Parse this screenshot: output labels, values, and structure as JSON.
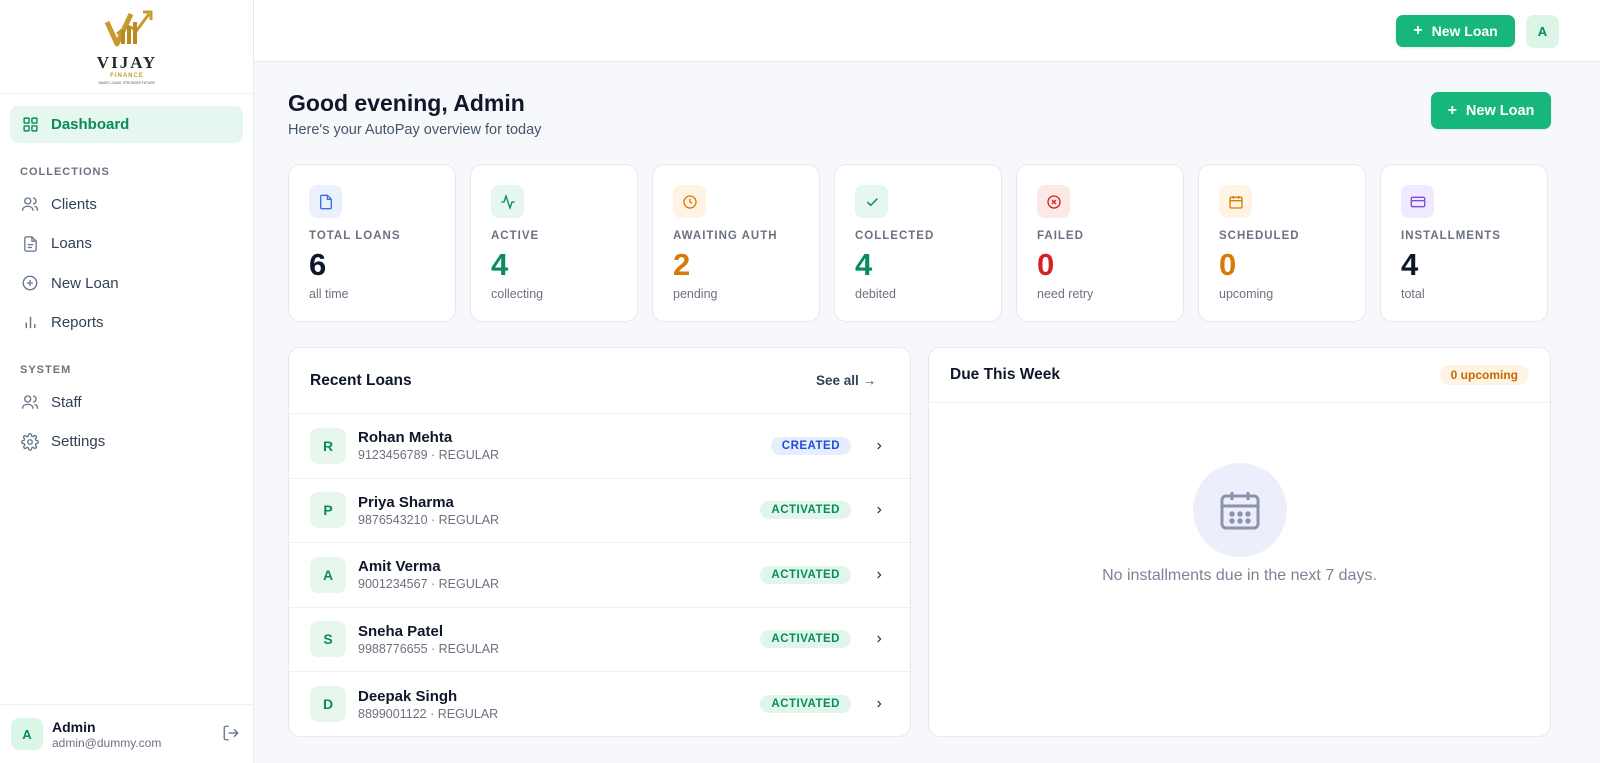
{
  "brand": {
    "name": "VIJAY",
    "sub": "FINANCE",
    "tagline": "SMART LOANS. STRONGER FUTURE."
  },
  "sidebar": {
    "dashboard": "Dashboard",
    "section_collections": "COLLECTIONS",
    "clients": "Clients",
    "loans": "Loans",
    "new_loan": "New Loan",
    "reports": "Reports",
    "section_system": "SYSTEM",
    "staff": "Staff",
    "settings": "Settings"
  },
  "user": {
    "initial": "A",
    "name": "Admin",
    "email": "admin@dummy.com"
  },
  "topbar": {
    "new_loan_label": "New Loan",
    "avatar_initial": "A"
  },
  "page": {
    "greeting": "Good evening, Admin",
    "subtitle": "Here's your AutoPay overview for today",
    "new_loan_label": "New Loan"
  },
  "stats": [
    {
      "label": "TOTAL LOANS",
      "value": "6",
      "note": "all time",
      "color": "#0f172a",
      "icon": "file-icon",
      "icon_bg": "#eaf0fd",
      "icon_color": "#3b6fe0"
    },
    {
      "label": "ACTIVE",
      "value": "4",
      "note": "collecting",
      "color": "#0a8b5c",
      "icon": "activity-icon",
      "icon_bg": "#e5f7ef",
      "icon_color": "#0a8b5c"
    },
    {
      "label": "AWAITING AUTH",
      "value": "2",
      "note": "pending",
      "color": "#d97a06",
      "icon": "clock-icon",
      "icon_bg": "#fff4e3",
      "icon_color": "#d97a06"
    },
    {
      "label": "COLLECTED",
      "value": "4",
      "note": "debited",
      "color": "#0a8b5c",
      "icon": "check-icon",
      "icon_bg": "#e5f7ef",
      "icon_color": "#0a8b5c"
    },
    {
      "label": "FAILED",
      "value": "0",
      "note": "need retry",
      "color": "#d92020",
      "icon": "x-circle-icon",
      "icon_bg": "#fde8e8",
      "icon_color": "#d92020"
    },
    {
      "label": "SCHEDULED",
      "value": "0",
      "note": "upcoming",
      "color": "#d97a06",
      "icon": "calendar-icon",
      "icon_bg": "#fff4e3",
      "icon_color": "#d97a06"
    },
    {
      "label": "INSTALLMENTS",
      "value": "4",
      "note": "total",
      "color": "#0f172a",
      "icon": "card-icon",
      "icon_bg": "#efeafd",
      "icon_color": "#7c4ddb"
    }
  ],
  "recent": {
    "title": "Recent Loans",
    "see_all": "See all →",
    "rows": [
      {
        "initial": "R",
        "name": "Rohan Mehta",
        "meta": "9123456789 · REGULAR",
        "status": "CREATED"
      },
      {
        "initial": "P",
        "name": "Priya Sharma",
        "meta": "9876543210 · REGULAR",
        "status": "ACTIVATED"
      },
      {
        "initial": "A",
        "name": "Amit Verma",
        "meta": "9001234567 · REGULAR",
        "status": "ACTIVATED"
      },
      {
        "initial": "S",
        "name": "Sneha Patel",
        "meta": "9988776655 · REGULAR",
        "status": "ACTIVATED"
      },
      {
        "initial": "D",
        "name": "Deepak Singh",
        "meta": "8899001122 · REGULAR",
        "status": "ACTIVATED"
      }
    ]
  },
  "due": {
    "title": "Due This Week",
    "badge": "0 upcoming",
    "empty_text": "No installments due in the next 7 days."
  }
}
